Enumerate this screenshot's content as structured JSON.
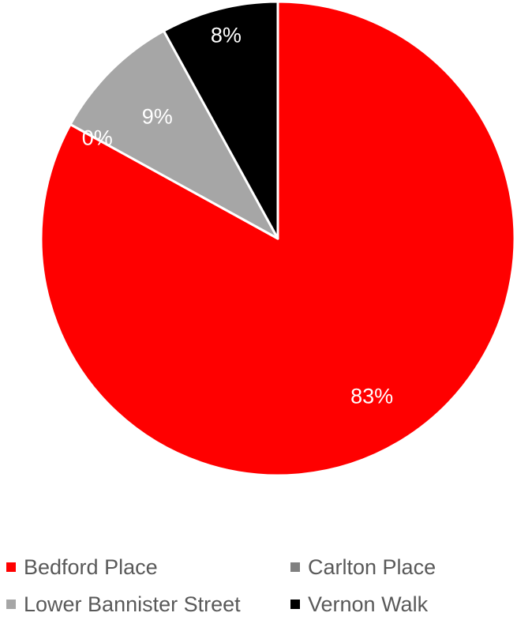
{
  "chart_data": {
    "type": "pie",
    "title": "",
    "legend_position": "bottom",
    "slices": [
      {
        "name": "Bedford Place",
        "percent": 83,
        "label": "83%",
        "color": "#ff0000",
        "label_color": "#ffffff"
      },
      {
        "name": "Carlton Place",
        "percent": 0,
        "label": "0%",
        "color": "#808080",
        "label_color": "#ffffff"
      },
      {
        "name": "Lower Bannister Street",
        "percent": 9,
        "label": "9%",
        "color": "#a6a6a6",
        "label_color": "#ffffff"
      },
      {
        "name": "Vernon Walk",
        "percent": 8,
        "label": "8%",
        "color": "#000000",
        "label_color": "#ffffff"
      }
    ]
  }
}
